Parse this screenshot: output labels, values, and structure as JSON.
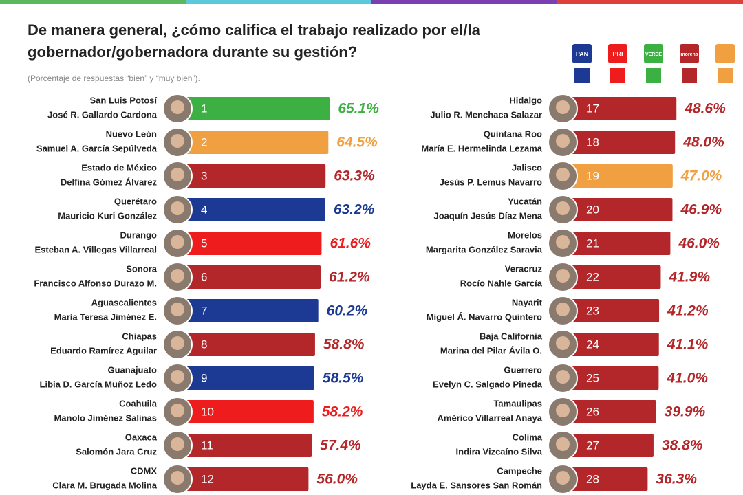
{
  "chart_data": {
    "type": "bar",
    "title_lines": [
      "De manera general, ¿cómo califica el trabajo realizado por el/la",
      "gobernador/gobernadora durante su gestión?"
    ],
    "subtitle": "(Porcentaje de respuestas “bien” y “muy bien”).",
    "legend": [
      {
        "name": "PAN",
        "color": "#1c3a94"
      },
      {
        "name": "PRI",
        "color": "#ee1c1c"
      },
      {
        "name": "VERDE",
        "color": "#3cb043"
      },
      {
        "name": "morena",
        "color": "#b3262a"
      },
      {
        "color": "#f0a040"
      }
    ],
    "categories": [
      "San Luis Potosí",
      "Nuevo León",
      "Estado de México",
      "Querétaro",
      "Durango",
      "Sonora",
      "Aguascalientes",
      "Chiapas",
      "Guanajuato",
      "Coahuila",
      "Oaxaca",
      "CDMX",
      "Hidalgo",
      "Quintana Roo",
      "Jalisco",
      "Yucatán",
      "Morelos",
      "Veracruz",
      "Nayarit",
      "Baja California",
      "Guerrero",
      "Tamaulipas",
      "Colima",
      "Campeche"
    ],
    "governors": [
      "José R. Gallardo Cardona",
      "Samuel A. García Sepúlveda",
      "Delfina Gómez Álvarez",
      "Mauricio Kuri González",
      "Esteban A. Villegas Villarreal",
      "Francisco Alfonso Durazo M.",
      "María Teresa Jiménez E.",
      "Eduardo Ramírez Aguilar",
      "Libia D. García Muñoz Ledo",
      "Manolo Jiménez Salinas",
      "Salomón Jara Cruz",
      "Clara M. Brugada Molina",
      "Julio R. Menchaca Salazar",
      "María E. Hermelinda Lezama",
      "Jesús P. Lemus Navarro",
      "Joaquín Jesús Díaz Mena",
      "Margarita González Saravia",
      "Rocío Nahle García",
      "Miguel Á. Navarro Quintero",
      "Marina del Pilar Ávila O.",
      "Evelyn C. Salgado Pineda",
      "Américo Villarreal Anaya",
      "Indira Vizcaíno Silva",
      "Layda E. Sansores San Román"
    ],
    "ranks": [
      1,
      2,
      3,
      4,
      5,
      6,
      7,
      8,
      9,
      10,
      11,
      12,
      17,
      18,
      19,
      20,
      21,
      22,
      23,
      24,
      25,
      26,
      27,
      28
    ],
    "values": [
      65.1,
      64.5,
      63.3,
      63.2,
      61.6,
      61.2,
      60.2,
      58.8,
      58.5,
      58.2,
      57.4,
      56.0,
      48.6,
      48.0,
      47.0,
      46.9,
      46.0,
      41.9,
      41.2,
      41.1,
      41.0,
      39.9,
      38.8,
      36.3
    ],
    "value_labels": [
      "65.1%",
      "64.5%",
      "63.3%",
      "63.2%",
      "61.6%",
      "61.2%",
      "60.2%",
      "58.8%",
      "58.5%",
      "58.2%",
      "57.4%",
      "56.0%",
      "48.6%",
      "48.0%",
      "47.0%",
      "46.9%",
      "46.0%",
      "41.9%",
      "41.2%",
      "41.1%",
      "41.0%",
      "39.9%",
      "38.8%",
      "36.3%"
    ],
    "colors": [
      "#3cb043",
      "#f0a040",
      "#b3262a",
      "#1c3a94",
      "#ee1c1c",
      "#b3262a",
      "#1c3a94",
      "#b3262a",
      "#1c3a94",
      "#ee1c1c",
      "#b3262a",
      "#b3262a",
      "#b3262a",
      "#b3262a",
      "#f0a040",
      "#b3262a",
      "#b3262a",
      "#b3262a",
      "#b3262a",
      "#b3262a",
      "#b3262a",
      "#b3262a",
      "#b3262a",
      "#b3262a"
    ]
  }
}
